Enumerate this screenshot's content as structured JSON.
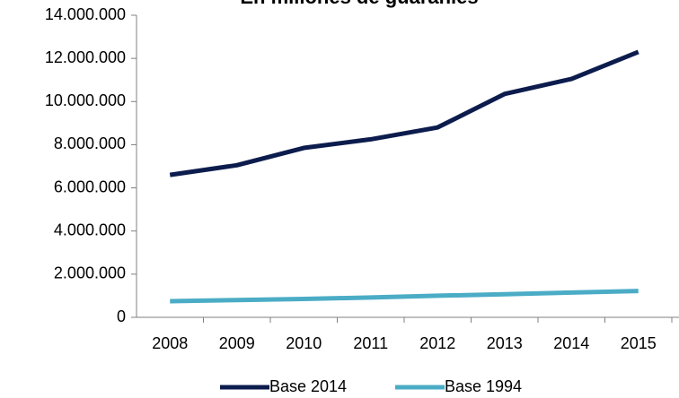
{
  "chart_data": {
    "type": "line",
    "title": "En millones de guaraníes",
    "categories": [
      "2008",
      "2009",
      "2010",
      "2011",
      "2012",
      "2013",
      "2014",
      "2015"
    ],
    "series": [
      {
        "name": "Base 2014",
        "color": "#0c1c4d",
        "values": [
          6600000,
          7050000,
          7850000,
          8250000,
          8800000,
          10350000,
          11050000,
          12300000
        ]
      },
      {
        "name": "Base 1994",
        "color": "#4bacc6",
        "values": [
          750000,
          800000,
          850000,
          920000,
          1000000,
          1070000,
          1150000,
          1220000
        ]
      }
    ],
    "ylim": [
      0,
      14000000
    ],
    "yticks": [
      0,
      {
        "value": 2000000,
        "label": "2.000.000"
      },
      {
        "value": 4000000,
        "label": "4.000.000"
      },
      {
        "value": 6000000,
        "label": "6.000.000"
      },
      {
        "value": 8000000,
        "label": "8.000.000"
      },
      {
        "value": 10000000,
        "label": "10.000.000"
      },
      {
        "value": 12000000,
        "label": "12.000.000"
      },
      {
        "value": 14000000,
        "label": "14.000.000"
      }
    ],
    "legend": "bottom"
  }
}
